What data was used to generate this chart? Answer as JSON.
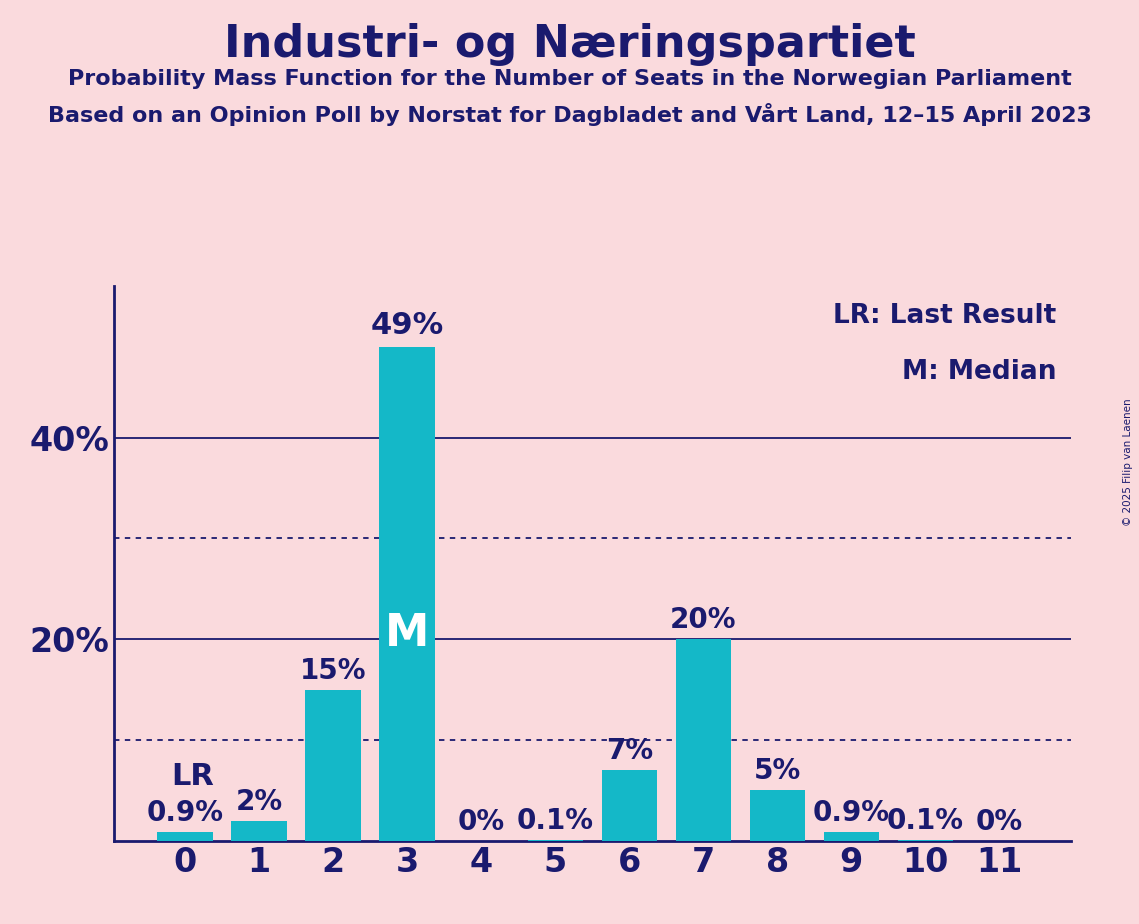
{
  "title": "Industri- og Næringspartiet",
  "subtitle1": "Probability Mass Function for the Number of Seats in the Norwegian Parliament",
  "subtitle2": "Based on an Opinion Poll by Norstat for Dagbladet and Vårt Land, 12–15 April 2023",
  "copyright": "© 2025 Filip van Laenen",
  "categories": [
    0,
    1,
    2,
    3,
    4,
    5,
    6,
    7,
    8,
    9,
    10,
    11
  ],
  "values": [
    0.9,
    2.0,
    15.0,
    49.0,
    0.0,
    0.1,
    7.0,
    20.0,
    5.0,
    0.9,
    0.1,
    0.0
  ],
  "labels": [
    "0.9%",
    "2%",
    "15%",
    "49%",
    "0%",
    "0.1%",
    "7%",
    "20%",
    "5%",
    "0.9%",
    "0.1%",
    "0%"
  ],
  "background_color": "#FADADD",
  "text_color": "#1a1a6e",
  "bar_color": "#14B8C8",
  "lr_index": 0,
  "median_index": 3,
  "dotted_lines": [
    10,
    30
  ],
  "solid_lines": [
    20,
    40
  ],
  "ylim": [
    0,
    55
  ],
  "legend_lr": "LR: Last Result",
  "legend_m": "M: Median",
  "bar_width": 0.75
}
